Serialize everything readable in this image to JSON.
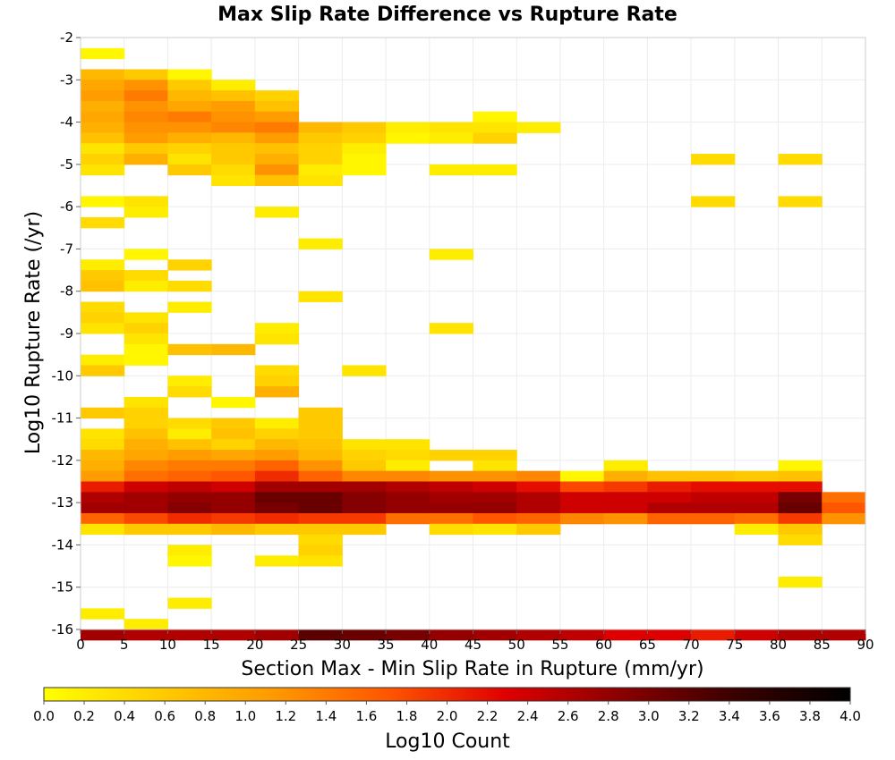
{
  "chart_data": {
    "type": "heatmap",
    "title": "Max Slip Rate Difference vs Rupture Rate",
    "xlabel": "Section Max - Min Slip Rate in Rupture (mm/yr)",
    "ylabel": "Log10 Rupture Rate (/yr)",
    "xlim": [
      0,
      90
    ],
    "ylim": [
      -16,
      -2
    ],
    "x_bin_width": 5,
    "y_bin_height": 0.25,
    "x_ticks": [
      "0",
      "5",
      "10",
      "15",
      "20",
      "25",
      "30",
      "35",
      "40",
      "45",
      "50",
      "55",
      "60",
      "65",
      "70",
      "75",
      "80",
      "85",
      "90"
    ],
    "y_ticks": [
      "-2",
      "-3",
      "-4",
      "-5",
      "-6",
      "-7",
      "-8",
      "-9",
      "-10",
      "-11",
      "-12",
      "-13",
      "-14",
      "-15",
      "-16"
    ],
    "colorbar": {
      "label": "Log10 Count",
      "range": [
        0.0,
        4.0
      ],
      "ticks": [
        "0.0",
        "0.2",
        "0.4",
        "0.6",
        "0.8",
        "1.0",
        "1.2",
        "1.4",
        "1.6",
        "1.8",
        "2.0",
        "2.2",
        "2.4",
        "2.6",
        "2.8",
        "3.0",
        "3.2",
        "3.4",
        "3.6",
        "3.8",
        "4.0"
      ],
      "colors": [
        "#ffff00",
        "#ffcc00",
        "#ff9900",
        "#ff5500",
        "#e00000",
        "#8b0000",
        "#3a0000",
        "#000000"
      ]
    },
    "grid": true,
    "columns": [
      {
        "x": 0,
        "cells": [
          [
            -2.25,
            0.1
          ],
          [
            -2.75,
            0.8
          ],
          [
            -3.0,
            1.0
          ],
          [
            -3.25,
            1.1
          ],
          [
            -3.5,
            0.9
          ],
          [
            -3.75,
            1.0
          ],
          [
            -4.0,
            0.9
          ],
          [
            -4.25,
            0.7
          ],
          [
            -4.5,
            0.3
          ],
          [
            -4.75,
            0.5
          ],
          [
            -5.0,
            0.3
          ],
          [
            -5.75,
            0.1
          ],
          [
            -6.25,
            0.4
          ],
          [
            -7.25,
            0.2
          ],
          [
            -7.5,
            0.6
          ],
          [
            -7.75,
            0.7
          ],
          [
            -8.25,
            0.4
          ],
          [
            -8.5,
            0.5
          ],
          [
            -8.75,
            0.3
          ],
          [
            -9.5,
            0.2
          ],
          [
            -9.75,
            0.6
          ],
          [
            -10.75,
            0.6
          ],
          [
            -11.25,
            0.3
          ],
          [
            -11.5,
            0.4
          ],
          [
            -11.75,
            0.8
          ],
          [
            -12.0,
            0.9
          ],
          [
            -12.25,
            1.1
          ],
          [
            -12.5,
            2.1
          ],
          [
            -12.75,
            2.6
          ],
          [
            -13.0,
            2.7
          ],
          [
            -13.25,
            1.6
          ],
          [
            -13.5,
            0.3
          ],
          [
            -15.5,
            0.2
          ],
          [
            -16.0,
            2.7
          ]
        ]
      },
      {
        "x": 5,
        "cells": [
          [
            -2.75,
            0.6
          ],
          [
            -3.0,
            1.2
          ],
          [
            -3.25,
            1.4
          ],
          [
            -3.5,
            1.2
          ],
          [
            -3.75,
            1.3
          ],
          [
            -4.0,
            1.2
          ],
          [
            -4.25,
            1.1
          ],
          [
            -4.5,
            0.6
          ],
          [
            -4.75,
            0.9
          ],
          [
            -5.75,
            0.3
          ],
          [
            -6.0,
            0.2
          ],
          [
            -7.0,
            0.1
          ],
          [
            -7.5,
            0.4
          ],
          [
            -7.75,
            0.2
          ],
          [
            -8.5,
            0.3
          ],
          [
            -8.75,
            0.5
          ],
          [
            -9.0,
            0.3
          ],
          [
            -9.25,
            0.1
          ],
          [
            -9.5,
            0.1
          ],
          [
            -10.5,
            0.3
          ],
          [
            -10.75,
            0.5
          ],
          [
            -11.0,
            0.5
          ],
          [
            -11.25,
            0.7
          ],
          [
            -11.5,
            0.9
          ],
          [
            -11.75,
            1.0
          ],
          [
            -12.0,
            1.3
          ],
          [
            -12.25,
            1.5
          ],
          [
            -12.5,
            2.4
          ],
          [
            -12.75,
            2.7
          ],
          [
            -13.0,
            2.7
          ],
          [
            -13.25,
            1.8
          ],
          [
            -13.5,
            0.6
          ],
          [
            -15.75,
            0.2
          ],
          [
            -16.0,
            2.6
          ]
        ]
      },
      {
        "x": 10,
        "cells": [
          [
            -2.75,
            0.1
          ],
          [
            -3.0,
            0.6
          ],
          [
            -3.25,
            0.8
          ],
          [
            -3.5,
            1.0
          ],
          [
            -3.75,
            1.4
          ],
          [
            -4.0,
            1.2
          ],
          [
            -4.25,
            0.9
          ],
          [
            -4.5,
            0.5
          ],
          [
            -4.75,
            0.3
          ],
          [
            -5.0,
            0.6
          ],
          [
            -7.25,
            0.5
          ],
          [
            -7.75,
            0.4
          ],
          [
            -8.25,
            0.2
          ],
          [
            -9.25,
            0.7
          ],
          [
            -10.0,
            0.2
          ],
          [
            -10.25,
            0.4
          ],
          [
            -11.0,
            0.4
          ],
          [
            -11.25,
            0.2
          ],
          [
            -11.5,
            0.7
          ],
          [
            -11.75,
            1.1
          ],
          [
            -12.0,
            1.4
          ],
          [
            -12.25,
            1.6
          ],
          [
            -12.5,
            2.5
          ],
          [
            -12.75,
            2.8
          ],
          [
            -13.0,
            2.9
          ],
          [
            -13.25,
            2.0
          ],
          [
            -13.5,
            0.6
          ],
          [
            -14.0,
            0.2
          ],
          [
            -14.25,
            0.1
          ],
          [
            -15.25,
            0.2
          ],
          [
            -16.0,
            2.6
          ]
        ]
      },
      {
        "x": 15,
        "cells": [
          [
            -3.0,
            0.2
          ],
          [
            -3.25,
            0.7
          ],
          [
            -3.5,
            1.1
          ],
          [
            -3.75,
            1.2
          ],
          [
            -4.0,
            1.3
          ],
          [
            -4.25,
            0.8
          ],
          [
            -4.5,
            0.6
          ],
          [
            -4.75,
            0.6
          ],
          [
            -5.0,
            0.4
          ],
          [
            -5.25,
            0.3
          ],
          [
            -9.25,
            0.8
          ],
          [
            -10.5,
            0.1
          ],
          [
            -11.0,
            0.6
          ],
          [
            -11.25,
            0.7
          ],
          [
            -11.5,
            0.5
          ],
          [
            -11.75,
            1.0
          ],
          [
            -12.0,
            1.4
          ],
          [
            -12.25,
            1.7
          ],
          [
            -12.5,
            2.4
          ],
          [
            -12.75,
            2.8
          ],
          [
            -13.0,
            2.8
          ],
          [
            -13.25,
            1.9
          ],
          [
            -13.5,
            0.8
          ],
          [
            -16.0,
            2.6
          ]
        ]
      },
      {
        "x": 20,
        "cells": [
          [
            -3.25,
            0.5
          ],
          [
            -3.5,
            0.7
          ],
          [
            -3.75,
            1.1
          ],
          [
            -4.0,
            1.4
          ],
          [
            -4.25,
            1.1
          ],
          [
            -4.5,
            0.7
          ],
          [
            -4.75,
            0.9
          ],
          [
            -5.0,
            1.2
          ],
          [
            -5.25,
            0.7
          ],
          [
            -6.0,
            0.2
          ],
          [
            -8.75,
            0.2
          ],
          [
            -9.0,
            0.3
          ],
          [
            -9.75,
            0.4
          ],
          [
            -10.0,
            0.5
          ],
          [
            -10.25,
            0.9
          ],
          [
            -11.0,
            0.2
          ],
          [
            -11.25,
            0.5
          ],
          [
            -11.5,
            0.8
          ],
          [
            -11.75,
            1.1
          ],
          [
            -12.0,
            1.6
          ],
          [
            -12.25,
            2.0
          ],
          [
            -12.5,
            2.7
          ],
          [
            -12.75,
            3.1
          ],
          [
            -13.0,
            3.0
          ],
          [
            -13.25,
            2.0
          ],
          [
            -13.5,
            0.6
          ],
          [
            -14.25,
            0.2
          ],
          [
            -16.0,
            2.7
          ]
        ]
      },
      {
        "x": 25,
        "cells": [
          [
            -4.0,
            0.8
          ],
          [
            -4.25,
            0.6
          ],
          [
            -4.5,
            0.5
          ],
          [
            -4.75,
            0.5
          ],
          [
            -5.0,
            0.2
          ],
          [
            -5.25,
            0.3
          ],
          [
            -6.75,
            0.2
          ],
          [
            -8.0,
            0.3
          ],
          [
            -10.75,
            0.6
          ],
          [
            -11.0,
            0.6
          ],
          [
            -11.25,
            0.6
          ],
          [
            -11.5,
            0.7
          ],
          [
            -11.75,
            0.8
          ],
          [
            -12.0,
            1.2
          ],
          [
            -12.25,
            1.6
          ],
          [
            -12.5,
            2.7
          ],
          [
            -12.75,
            3.1
          ],
          [
            -13.0,
            3.1
          ],
          [
            -13.25,
            1.9
          ],
          [
            -13.5,
            0.6
          ],
          [
            -13.75,
            0.4
          ],
          [
            -14.0,
            0.5
          ],
          [
            -14.25,
            0.3
          ],
          [
            -16.0,
            3.2
          ]
        ]
      },
      {
        "x": 30,
        "cells": [
          [
            -4.0,
            0.6
          ],
          [
            -4.25,
            0.5
          ],
          [
            -4.5,
            0.2
          ],
          [
            -4.75,
            0.1
          ],
          [
            -5.0,
            0.1
          ],
          [
            -9.75,
            0.3
          ],
          [
            -11.5,
            0.3
          ],
          [
            -11.75,
            0.5
          ],
          [
            -12.0,
            0.6
          ],
          [
            -12.25,
            1.3
          ],
          [
            -12.5,
            2.7
          ],
          [
            -12.75,
            2.9
          ],
          [
            -13.0,
            2.9
          ],
          [
            -13.25,
            1.9
          ],
          [
            -13.5,
            0.6
          ],
          [
            -16.0,
            3.1
          ]
        ]
      },
      {
        "x": 35,
        "cells": [
          [
            -4.0,
            0.2
          ],
          [
            -4.25,
            0.1
          ],
          [
            -11.5,
            0.3
          ],
          [
            -11.75,
            0.4
          ],
          [
            -12.0,
            0.2
          ],
          [
            -12.25,
            1.3
          ],
          [
            -12.5,
            2.6
          ],
          [
            -12.75,
            2.8
          ],
          [
            -13.0,
            2.8
          ],
          [
            -13.25,
            1.5
          ],
          [
            -16.0,
            3.0
          ]
        ]
      },
      {
        "x": 40,
        "cells": [
          [
            -4.0,
            0.3
          ],
          [
            -4.25,
            0.2
          ],
          [
            -5.0,
            0.2
          ],
          [
            -7.0,
            0.2
          ],
          [
            -8.75,
            0.3
          ],
          [
            -11.75,
            0.5
          ],
          [
            -12.25,
            1.2
          ],
          [
            -12.5,
            2.5
          ],
          [
            -12.75,
            2.7
          ],
          [
            -13.0,
            2.8
          ],
          [
            -13.25,
            1.5
          ],
          [
            -13.5,
            0.4
          ],
          [
            -16.0,
            2.8
          ]
        ]
      },
      {
        "x": 45,
        "cells": [
          [
            -3.75,
            0.1
          ],
          [
            -4.0,
            0.3
          ],
          [
            -4.25,
            0.5
          ],
          [
            -5.0,
            0.2
          ],
          [
            -11.75,
            0.5
          ],
          [
            -12.0,
            0.3
          ],
          [
            -12.25,
            1.2
          ],
          [
            -12.5,
            2.4
          ],
          [
            -12.75,
            2.7
          ],
          [
            -13.0,
            2.8
          ],
          [
            -13.25,
            1.7
          ],
          [
            -13.5,
            0.3
          ],
          [
            -16.0,
            2.7
          ]
        ]
      },
      {
        "x": 50,
        "cells": [
          [
            -4.0,
            0.2
          ],
          [
            -12.25,
            1.3
          ],
          [
            -12.5,
            2.2
          ],
          [
            -12.75,
            2.6
          ],
          [
            -13.0,
            2.6
          ],
          [
            -13.25,
            1.6
          ],
          [
            -13.5,
            0.6
          ],
          [
            -16.0,
            2.6
          ]
        ]
      },
      {
        "x": 55,
        "cells": [
          [
            -12.25,
            0.1
          ],
          [
            -12.5,
            1.8
          ],
          [
            -12.75,
            2.4
          ],
          [
            -13.0,
            2.4
          ],
          [
            -13.25,
            1.3
          ],
          [
            -16.0,
            2.5
          ]
        ]
      },
      {
        "x": 60,
        "cells": [
          [
            -12.0,
            0.2
          ],
          [
            -12.25,
            0.9
          ],
          [
            -12.5,
            1.9
          ],
          [
            -12.75,
            2.4
          ],
          [
            -13.0,
            2.4
          ],
          [
            -13.25,
            1.2
          ],
          [
            -16.0,
            2.3
          ]
        ]
      },
      {
        "x": 65,
        "cells": [
          [
            -12.25,
            0.7
          ],
          [
            -12.5,
            2.1
          ],
          [
            -12.75,
            2.4
          ],
          [
            -13.0,
            2.6
          ],
          [
            -13.25,
            1.6
          ],
          [
            -16.0,
            2.3
          ]
        ]
      },
      {
        "x": 70,
        "cells": [
          [
            -4.75,
            0.4
          ],
          [
            -5.75,
            0.4
          ],
          [
            -12.25,
            0.7
          ],
          [
            -12.5,
            2.2
          ],
          [
            -12.75,
            2.5
          ],
          [
            -13.0,
            2.6
          ],
          [
            -13.25,
            1.6
          ],
          [
            -16.0,
            2.1
          ]
        ]
      },
      {
        "x": 75,
        "cells": [
          [
            -12.25,
            0.6
          ],
          [
            -12.5,
            2.2
          ],
          [
            -12.75,
            2.5
          ],
          [
            -13.0,
            2.6
          ],
          [
            -13.25,
            1.5
          ],
          [
            -13.5,
            0.2
          ],
          [
            -16.0,
            2.4
          ]
        ]
      },
      {
        "x": 80,
        "cells": [
          [
            -4.75,
            0.4
          ],
          [
            -5.75,
            0.4
          ],
          [
            -12.0,
            0.1
          ],
          [
            -12.25,
            0.7
          ],
          [
            -12.5,
            2.2
          ],
          [
            -12.75,
            3.0
          ],
          [
            -13.0,
            3.1
          ],
          [
            -13.25,
            1.9
          ],
          [
            -13.5,
            0.6
          ],
          [
            -13.75,
            0.4
          ],
          [
            -14.75,
            0.2
          ],
          [
            -16.0,
            2.6
          ]
        ]
      },
      {
        "x": 85,
        "cells": [
          [
            -12.75,
            1.5
          ],
          [
            -13.0,
            1.7
          ],
          [
            -13.25,
            1.2
          ],
          [
            -16.0,
            2.6
          ]
        ]
      }
    ]
  }
}
